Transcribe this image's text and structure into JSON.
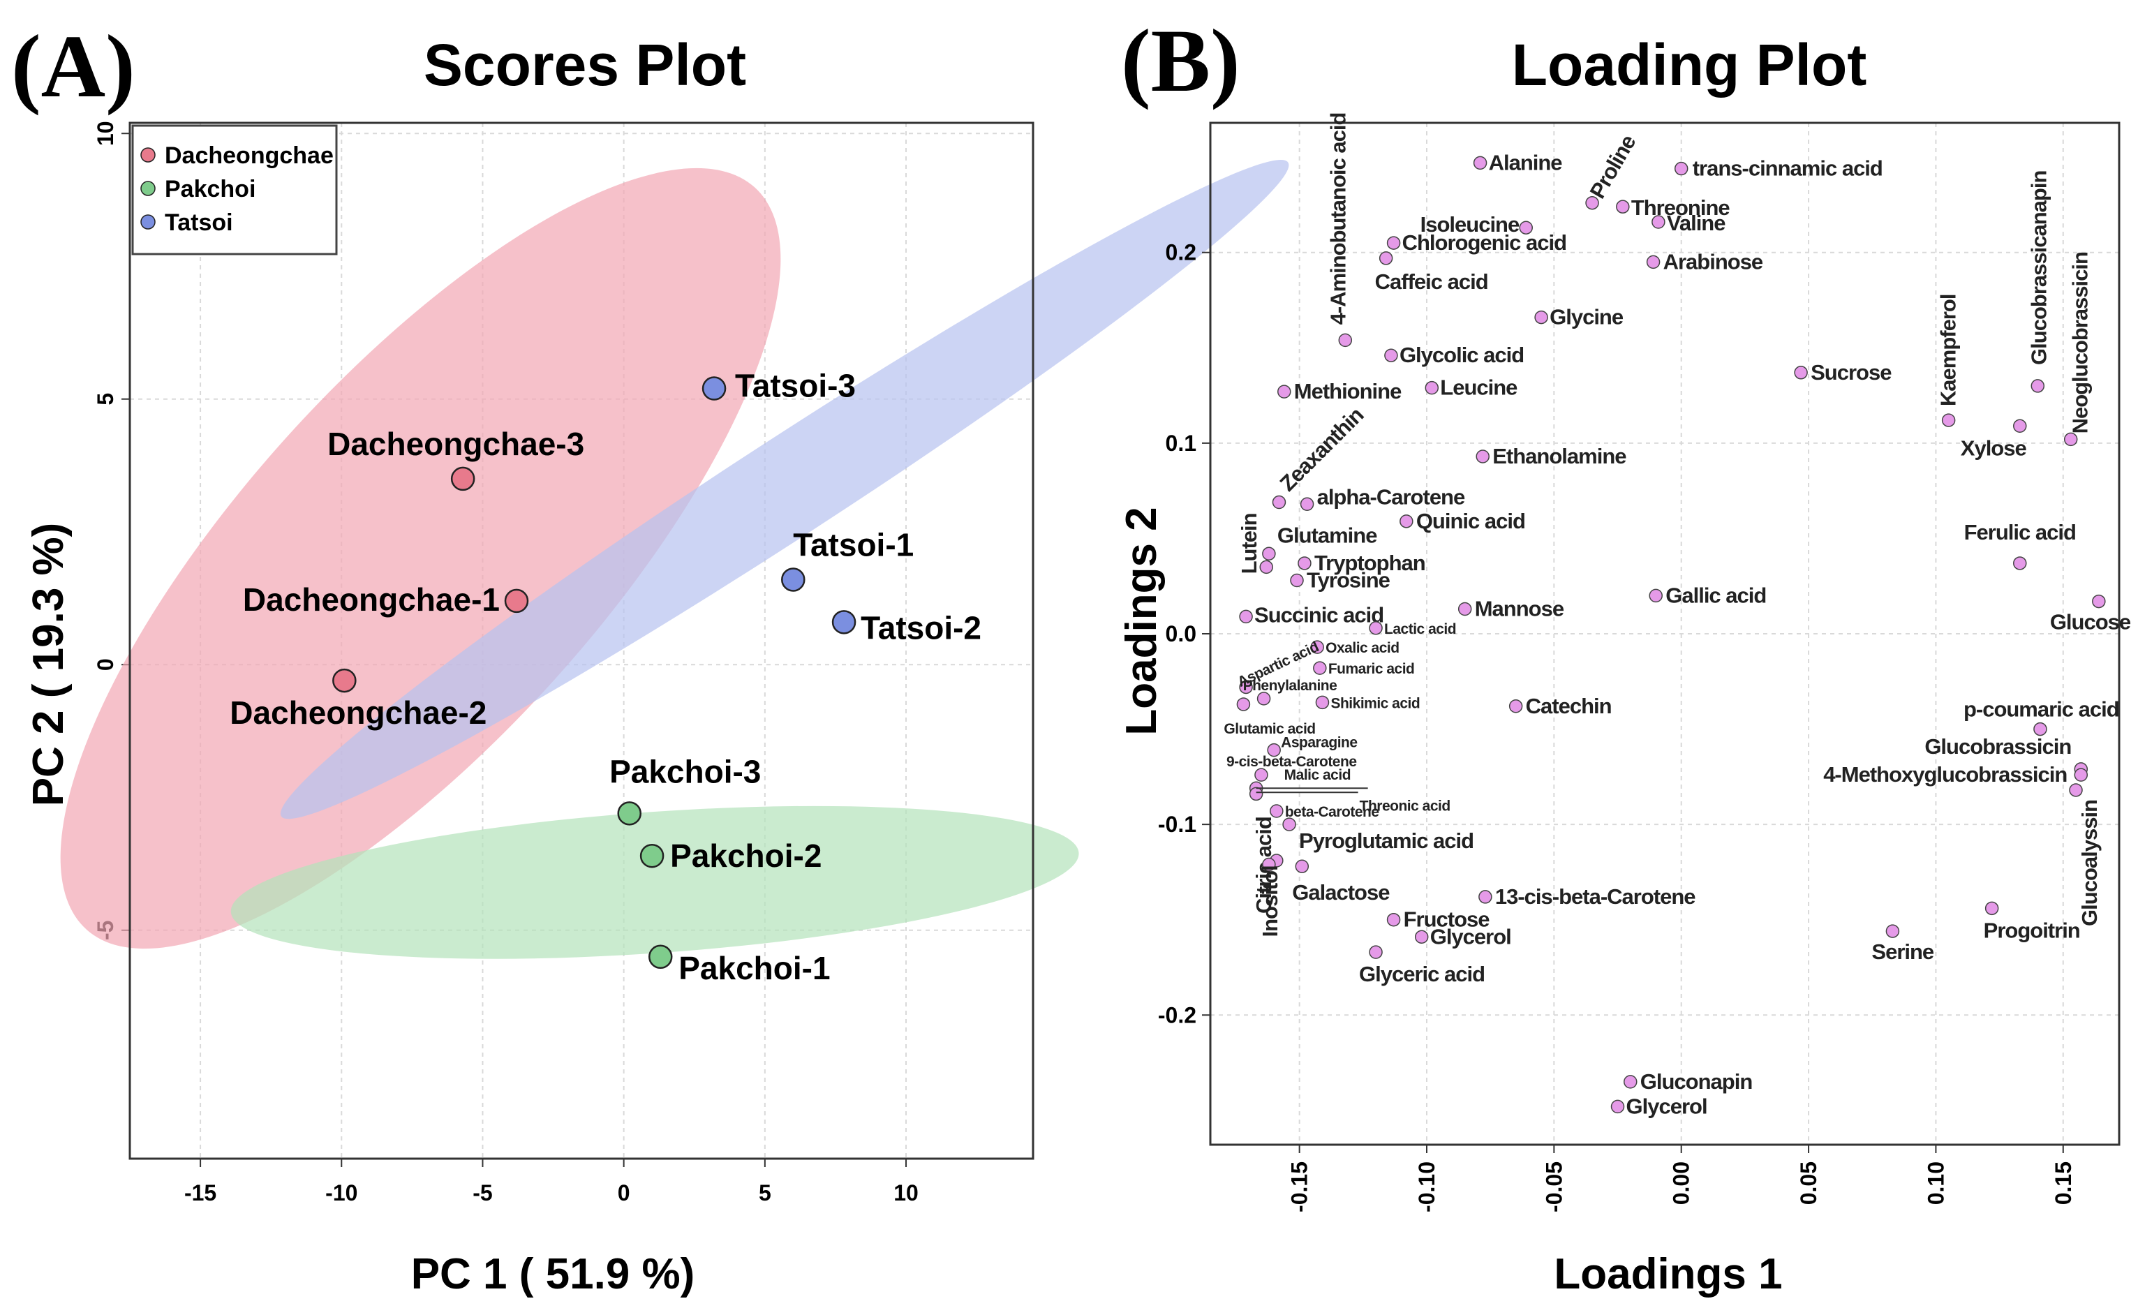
{
  "panelA": {
    "letter": "(A)",
    "title": "Scores Plot",
    "xlabel": "PC 1 ( 51.9 %)",
    "ylabel": "PC 2 ( 19.3 %)"
  },
  "panelB": {
    "letter": "(B)",
    "title": "Loading Plot",
    "xlabel": "Loadings 1",
    "ylabel": "Loadings 2"
  },
  "colors": {
    "Dacheongchae": "#e87a8c",
    "Pakchoi": "#7fcc8c",
    "Tatsoi": "#7b8fe0",
    "loading_point": "#e59ae8",
    "ellipse_Dacheongchae": "#f2a7b4",
    "ellipse_Pakchoi": "#b3e3bb",
    "ellipse_Tatsoi": "#b7c2ef"
  },
  "chart_data": [
    {
      "type": "scatter",
      "title": "Scores Plot",
      "xlabel": "PC 1 ( 51.9 %)",
      "ylabel": "PC 2 ( 19.3 %)",
      "xlim": [
        -17.5,
        14.5
      ],
      "ylim": [
        -9.3,
        10.2
      ],
      "xticks": [
        -15,
        -10,
        -5,
        0,
        5,
        10
      ],
      "yticks": [
        -5,
        0,
        5,
        10
      ],
      "grid": true,
      "legend": {
        "position": "top-left",
        "entries": [
          "Dacheongchae",
          "Pakchoi",
          "Tatsoi"
        ]
      },
      "series": [
        {
          "name": "Dacheongchae",
          "points": [
            {
              "label": "Dacheongchae-3",
              "x": -5.7,
              "y": 3.5
            },
            {
              "label": "Dacheongchae-1",
              "x": -3.8,
              "y": 1.2
            },
            {
              "label": "Dacheongchae-2",
              "x": -9.9,
              "y": -0.3
            }
          ]
        },
        {
          "name": "Pakchoi",
          "points": [
            {
              "label": "Pakchoi-3",
              "x": 0.2,
              "y": -2.8
            },
            {
              "label": "Pakchoi-2",
              "x": 1.0,
              "y": -3.6
            },
            {
              "label": "Pakchoi-1",
              "x": 1.3,
              "y": -5.5
            }
          ]
        },
        {
          "name": "Tatsoi",
          "points": [
            {
              "label": "Tatsoi-3",
              "x": 3.2,
              "y": 5.2
            },
            {
              "label": "Tatsoi-1",
              "x": 6.0,
              "y": 1.6
            },
            {
              "label": "Tatsoi-2",
              "x": 7.8,
              "y": 0.8
            }
          ]
        }
      ],
      "confidence_ellipses": [
        {
          "group": "Dacheongchae",
          "center": [
            -7.2,
            2.0
          ],
          "radius_x": 6.4,
          "radius_y": 9.4,
          "angle_deg": 42
        },
        {
          "group": "Pakchoi",
          "center": [
            1.1,
            -4.1
          ],
          "radius_x": 2.5,
          "radius_y": 8.0,
          "angle_deg": 86
        },
        {
          "group": "Tatsoi",
          "center": [
            5.7,
            3.3
          ],
          "radius_x": 1.75,
          "radius_y": 11.3,
          "angle_deg": 57
        }
      ]
    },
    {
      "type": "scatter",
      "title": "Loading Plot",
      "xlabel": "Loadings 1",
      "ylabel": "Loadings 2",
      "xlim": [
        -0.185,
        0.172
      ],
      "ylim": [
        -0.268,
        0.268
      ],
      "xticks": [
        -0.15,
        -0.1,
        -0.05,
        0.0,
        0.05,
        0.1,
        0.15
      ],
      "yticks": [
        -0.2,
        -0.1,
        0.0,
        0.1,
        0.2
      ],
      "xtick_labels": [
        "-0.15",
        "-0.10",
        "-0.05",
        "0.00",
        "0.05",
        "0.10",
        "0.15"
      ],
      "ytick_labels": [
        "-0.2",
        "-0.1",
        "0.0",
        "0.1",
        "0.2"
      ],
      "grid": true,
      "points": [
        {
          "label": "Alanine",
          "x": -0.079,
          "y": 0.247
        },
        {
          "label": "Proline",
          "x": -0.035,
          "y": 0.226
        },
        {
          "label": "trans-cinnamic acid",
          "x": 0.0,
          "y": 0.244
        },
        {
          "label": "Threonine",
          "x": -0.023,
          "y": 0.224
        },
        {
          "label": "Isoleucine",
          "x": -0.061,
          "y": 0.213
        },
        {
          "label": "Valine",
          "x": -0.009,
          "y": 0.216
        },
        {
          "label": "Chlorogenic acid",
          "x": -0.113,
          "y": 0.205
        },
        {
          "label": "Caffeic acid",
          "x": -0.116,
          "y": 0.197
        },
        {
          "label": "Arabinose",
          "x": -0.011,
          "y": 0.195
        },
        {
          "label": "4-Aminobutanoic acid",
          "x": -0.132,
          "y": 0.154
        },
        {
          "label": "Glycine",
          "x": -0.055,
          "y": 0.166
        },
        {
          "label": "Glycolic acid",
          "x": -0.114,
          "y": 0.146
        },
        {
          "label": "Sucrose",
          "x": 0.047,
          "y": 0.137
        },
        {
          "label": "Methionine",
          "x": -0.156,
          "y": 0.127
        },
        {
          "label": "Leucine",
          "x": -0.098,
          "y": 0.129
        },
        {
          "label": "Kaempferol",
          "x": 0.105,
          "y": 0.112
        },
        {
          "label": "Glucobrassicanapin",
          "x": 0.14,
          "y": 0.13
        },
        {
          "label": "Neoglucobrassicin",
          "x": 0.153,
          "y": 0.102
        },
        {
          "label": "Xylose",
          "x": 0.133,
          "y": 0.109
        },
        {
          "label": "Zeaxanthin",
          "x": -0.158,
          "y": 0.069
        },
        {
          "label": "Ethanolamine",
          "x": -0.078,
          "y": 0.093
        },
        {
          "label": "alpha-Carotene",
          "x": -0.147,
          "y": 0.068
        },
        {
          "label": "Quinic acid",
          "x": -0.108,
          "y": 0.059
        },
        {
          "label": "Lutein",
          "x": -0.163,
          "y": 0.035
        },
        {
          "label": "Glutamine",
          "x": -0.162,
          "y": 0.042
        },
        {
          "label": "Tryptophan",
          "x": -0.148,
          "y": 0.037
        },
        {
          "label": "Tyrosine",
          "x": -0.151,
          "y": 0.028
        },
        {
          "label": "Ferulic acid",
          "x": 0.133,
          "y": 0.037
        },
        {
          "label": "Gallic acid",
          "x": -0.01,
          "y": 0.02
        },
        {
          "label": "Glucose",
          "x": 0.164,
          "y": 0.017
        },
        {
          "label": "Succinic acid",
          "x": -0.171,
          "y": 0.009
        },
        {
          "label": "Mannose",
          "x": -0.085,
          "y": 0.013
        },
        {
          "label": "Lactic acid",
          "x": -0.12,
          "y": 0.003
        },
        {
          "label": "Oxalic acid",
          "x": -0.143,
          "y": -0.007
        },
        {
          "label": "Aspartic acid",
          "x": -0.171,
          "y": -0.028
        },
        {
          "label": "Fumaric acid",
          "x": -0.142,
          "y": -0.018
        },
        {
          "label": "Phenylalanine",
          "x": -0.164,
          "y": -0.034
        },
        {
          "label": "Shikimic acid",
          "x": -0.141,
          "y": -0.036
        },
        {
          "label": "Catechin",
          "x": -0.065,
          "y": -0.038
        },
        {
          "label": "Glutamic acid",
          "x": -0.172,
          "y": -0.037
        },
        {
          "label": "p-coumaric acid",
          "x": 0.141,
          "y": -0.05
        },
        {
          "label": "Asparagine",
          "x": -0.16,
          "y": -0.061
        },
        {
          "label": "Glucobrassicin",
          "x": 0.157,
          "y": -0.071
        },
        {
          "label": "9-cis-beta-Carotene",
          "x": -0.165,
          "y": -0.074
        },
        {
          "label": "Malic acid",
          "x": -0.167,
          "y": -0.081
        },
        {
          "label": "Threonic acid",
          "x": -0.167,
          "y": -0.084
        },
        {
          "label": "4-Methoxyglucobrassicin",
          "x": 0.157,
          "y": -0.074
        },
        {
          "label": "Glucoalyssin",
          "x": 0.155,
          "y": -0.082
        },
        {
          "label": "beta-Carotene",
          "x": -0.159,
          "y": -0.093
        },
        {
          "label": "Pyroglutamic acid",
          "x": -0.154,
          "y": -0.1
        },
        {
          "label": "Citric acid",
          "x": -0.159,
          "y": -0.119
        },
        {
          "label": "Inositol",
          "x": -0.162,
          "y": -0.121
        },
        {
          "label": "Galactose",
          "x": -0.149,
          "y": -0.122
        },
        {
          "label": "13-cis-beta-Carotene",
          "x": -0.077,
          "y": -0.138
        },
        {
          "label": "Fructose",
          "x": -0.113,
          "y": -0.15
        },
        {
          "label": "Glycerol",
          "x": -0.102,
          "y": -0.159
        },
        {
          "label": "Glyceric acid",
          "x": -0.12,
          "y": -0.167
        },
        {
          "label": "Progoitrin",
          "x": 0.122,
          "y": -0.144
        },
        {
          "label": "Serine",
          "x": 0.083,
          "y": -0.156
        },
        {
          "label": "Gluconapin",
          "x": -0.02,
          "y": -0.235
        },
        {
          "label": "Glycerol",
          "x": -0.025,
          "y": -0.248
        }
      ]
    }
  ]
}
